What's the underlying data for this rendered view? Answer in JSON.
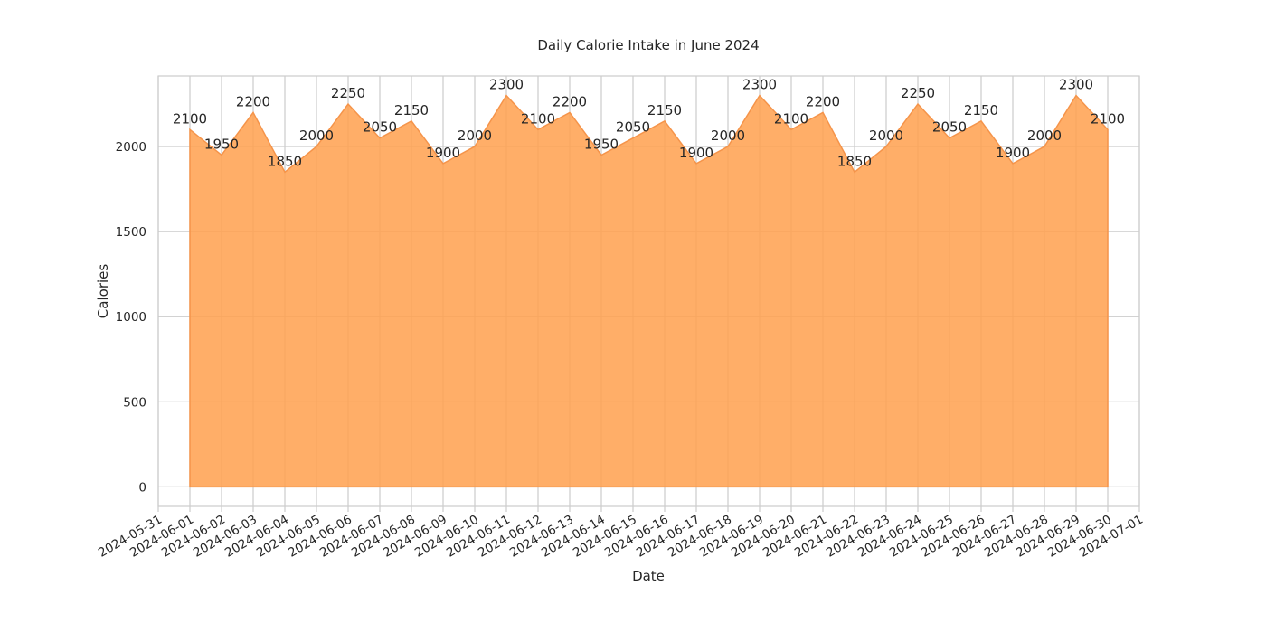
{
  "chart_data": {
    "type": "area",
    "title": "Daily Calorie Intake in June 2024",
    "xlabel": "Date",
    "ylabel": "Calories",
    "x": [
      "2024-06-01",
      "2024-06-02",
      "2024-06-03",
      "2024-06-04",
      "2024-06-05",
      "2024-06-06",
      "2024-06-07",
      "2024-06-08",
      "2024-06-09",
      "2024-06-10",
      "2024-06-11",
      "2024-06-12",
      "2024-06-13",
      "2024-06-14",
      "2024-06-15",
      "2024-06-16",
      "2024-06-17",
      "2024-06-18",
      "2024-06-19",
      "2024-06-20",
      "2024-06-21",
      "2024-06-22",
      "2024-06-23",
      "2024-06-24",
      "2024-06-25",
      "2024-06-26",
      "2024-06-27",
      "2024-06-28",
      "2024-06-29",
      "2024-06-30"
    ],
    "series": [
      {
        "values": [
          2100,
          1950,
          2200,
          1850,
          2000,
          2250,
          2050,
          2150,
          1900,
          2000,
          2300,
          2100,
          2200,
          1950,
          2050,
          2150,
          1900,
          2000,
          2300,
          2100,
          2200,
          1850,
          2000,
          2250,
          2050,
          2150,
          1900,
          2000,
          2300,
          2100
        ]
      }
    ],
    "x_ticks": [
      "2024-05-31",
      "2024-06-01",
      "2024-06-02",
      "2024-06-03",
      "2024-06-04",
      "2024-06-05",
      "2024-06-06",
      "2024-06-07",
      "2024-06-08",
      "2024-06-09",
      "2024-06-10",
      "2024-06-11",
      "2024-06-12",
      "2024-06-13",
      "2024-06-14",
      "2024-06-15",
      "2024-06-16",
      "2024-06-17",
      "2024-06-18",
      "2024-06-19",
      "2024-06-20",
      "2024-06-21",
      "2024-06-22",
      "2024-06-23",
      "2024-06-24",
      "2024-06-25",
      "2024-06-26",
      "2024-06-27",
      "2024-06-28",
      "2024-06-29",
      "2024-06-30",
      "2024-07-01"
    ],
    "xlim": [
      "2024-05-31",
      "2024-07-01"
    ],
    "y_ticks": [
      0,
      500,
      1000,
      1500,
      2000
    ],
    "ylim": [
      -115,
      2415
    ],
    "grid": true,
    "fill_color": "#ffa04d",
    "fill_opacity": 0.85,
    "line_color": "#f5944a"
  }
}
